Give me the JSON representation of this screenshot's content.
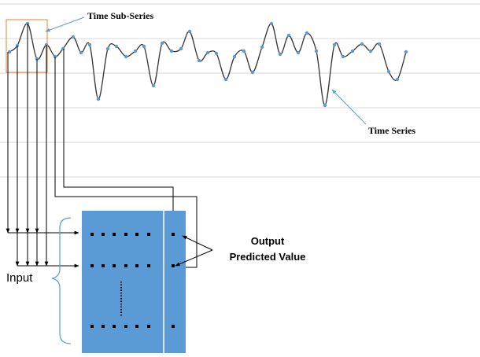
{
  "labels": {
    "sub_series": "Time Sub-Series",
    "series": "Time Series",
    "output": "Output",
    "predicted": "Predicted Value",
    "input": "Input"
  }
}
